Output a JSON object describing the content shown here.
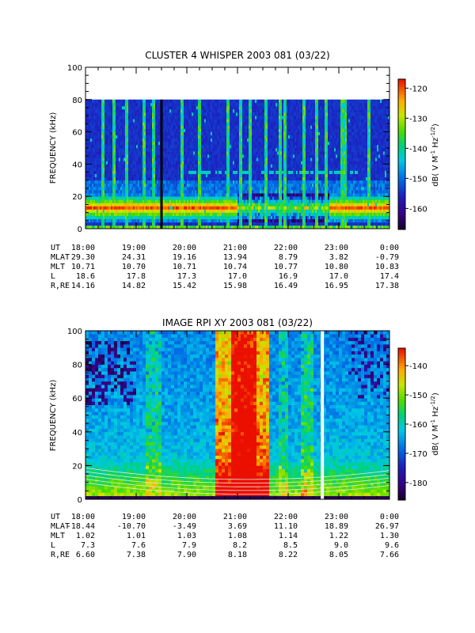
{
  "chart_data": [
    {
      "type": "heatmap",
      "title": "CLUSTER 4 WHISPER 2003 081 (03/22)",
      "ylabel": "FREQUENCY (kHz)",
      "ylim": [
        0,
        100
      ],
      "y_ticks": [
        "0",
        "20",
        "40",
        "60",
        "80",
        "100"
      ],
      "data_ylim": [
        0,
        80
      ],
      "xlim": [
        "18:00",
        "0:00"
      ],
      "colorbar": {
        "label_main": "dB( V M",
        "label_sup1": "-1",
        "label_mid": " Hz",
        "label_sup2": "-1/2",
        "label_end": ")",
        "range": [
          -167,
          -117
        ],
        "ticks": [
          "-120",
          "-130",
          "-140",
          "-150",
          "-160"
        ],
        "tick_values": [
          -120,
          -130,
          -140,
          -150,
          -160
        ]
      },
      "bands": [
        {
          "name": "low-frequency band",
          "freq_range_khz": [
            4,
            22
          ],
          "level_db": -122
        },
        {
          "name": "upper cutoff",
          "freq_khz": 80
        }
      ],
      "gaps_utc": [
        "19:30"
      ],
      "ephemeris": {
        "rows": [
          {
            "label": "UT",
            "values": [
              "18:00",
              "19:00",
              "20:00",
              "21:00",
              "22:00",
              "23:00",
              "0:00"
            ]
          },
          {
            "label": "MLAT",
            "values": [
              "29.30",
              "24.31",
              "19.16",
              "13.94",
              "8.79",
              "3.82",
              "-0.79"
            ]
          },
          {
            "label": "MLT",
            "values": [
              "10.71",
              "10.70",
              "10.71",
              "10.74",
              "10.77",
              "10.80",
              "10.83"
            ]
          },
          {
            "label": "L",
            "values": [
              "18.6",
              "17.8",
              "17.3",
              "17.0",
              "16.9",
              "17.0",
              "17.4"
            ]
          },
          {
            "label": "R,RE",
            "values": [
              "14.16",
              "14.82",
              "15.42",
              "15.98",
              "16.49",
              "16.95",
              "17.38"
            ]
          }
        ]
      }
    },
    {
      "type": "heatmap",
      "title": "IMAGE RPI XY 2003 081 (03/22)",
      "ylabel": "FREQUENCY (kHz)",
      "ylim": [
        0,
        100
      ],
      "y_ticks": [
        "0",
        "20",
        "40",
        "60",
        "80",
        "100"
      ],
      "data_ylim": [
        0,
        100
      ],
      "xlim": [
        "18:00",
        "0:00"
      ],
      "colorbar": {
        "label_main": "dB( V M",
        "label_sup1": "-1",
        "label_mid": " Hz",
        "label_sup2": "-1/2",
        "label_end": ")",
        "range": [
          -186,
          -134
        ],
        "ticks": [
          "-140",
          "-150",
          "-160",
          "-170",
          "-180"
        ],
        "tick_values": [
          -140,
          -150,
          -160,
          -170,
          -180
        ]
      },
      "bands": [
        {
          "name": "broadband emission",
          "utc_range": [
            "20:55",
            "21:30"
          ],
          "level_db": -137
        }
      ],
      "gaps_utc": [
        "22:40"
      ],
      "ephemeris": {
        "rows": [
          {
            "label": "UT",
            "values": [
              "18:00",
              "19:00",
              "20:00",
              "21:00",
              "22:00",
              "23:00",
              "0:00"
            ]
          },
          {
            "label": "MLAT",
            "values": [
              "-18.44",
              "-10.70",
              "-3.49",
              "3.69",
              "11.10",
              "18.89",
              "26.97"
            ]
          },
          {
            "label": "MLT",
            "values": [
              "1.02",
              "1.01",
              "1.03",
              "1.08",
              "1.14",
              "1.22",
              "1.30"
            ]
          },
          {
            "label": "L",
            "values": [
              "7.3",
              "7.6",
              "7.9",
              "8.2",
              "8.5",
              "9.0",
              "9.6"
            ]
          },
          {
            "label": "R,RE",
            "values": [
              "6.60",
              "7.38",
              "7.90",
              "8.18",
              "8.22",
              "8.05",
              "7.66"
            ]
          }
        ]
      }
    }
  ]
}
